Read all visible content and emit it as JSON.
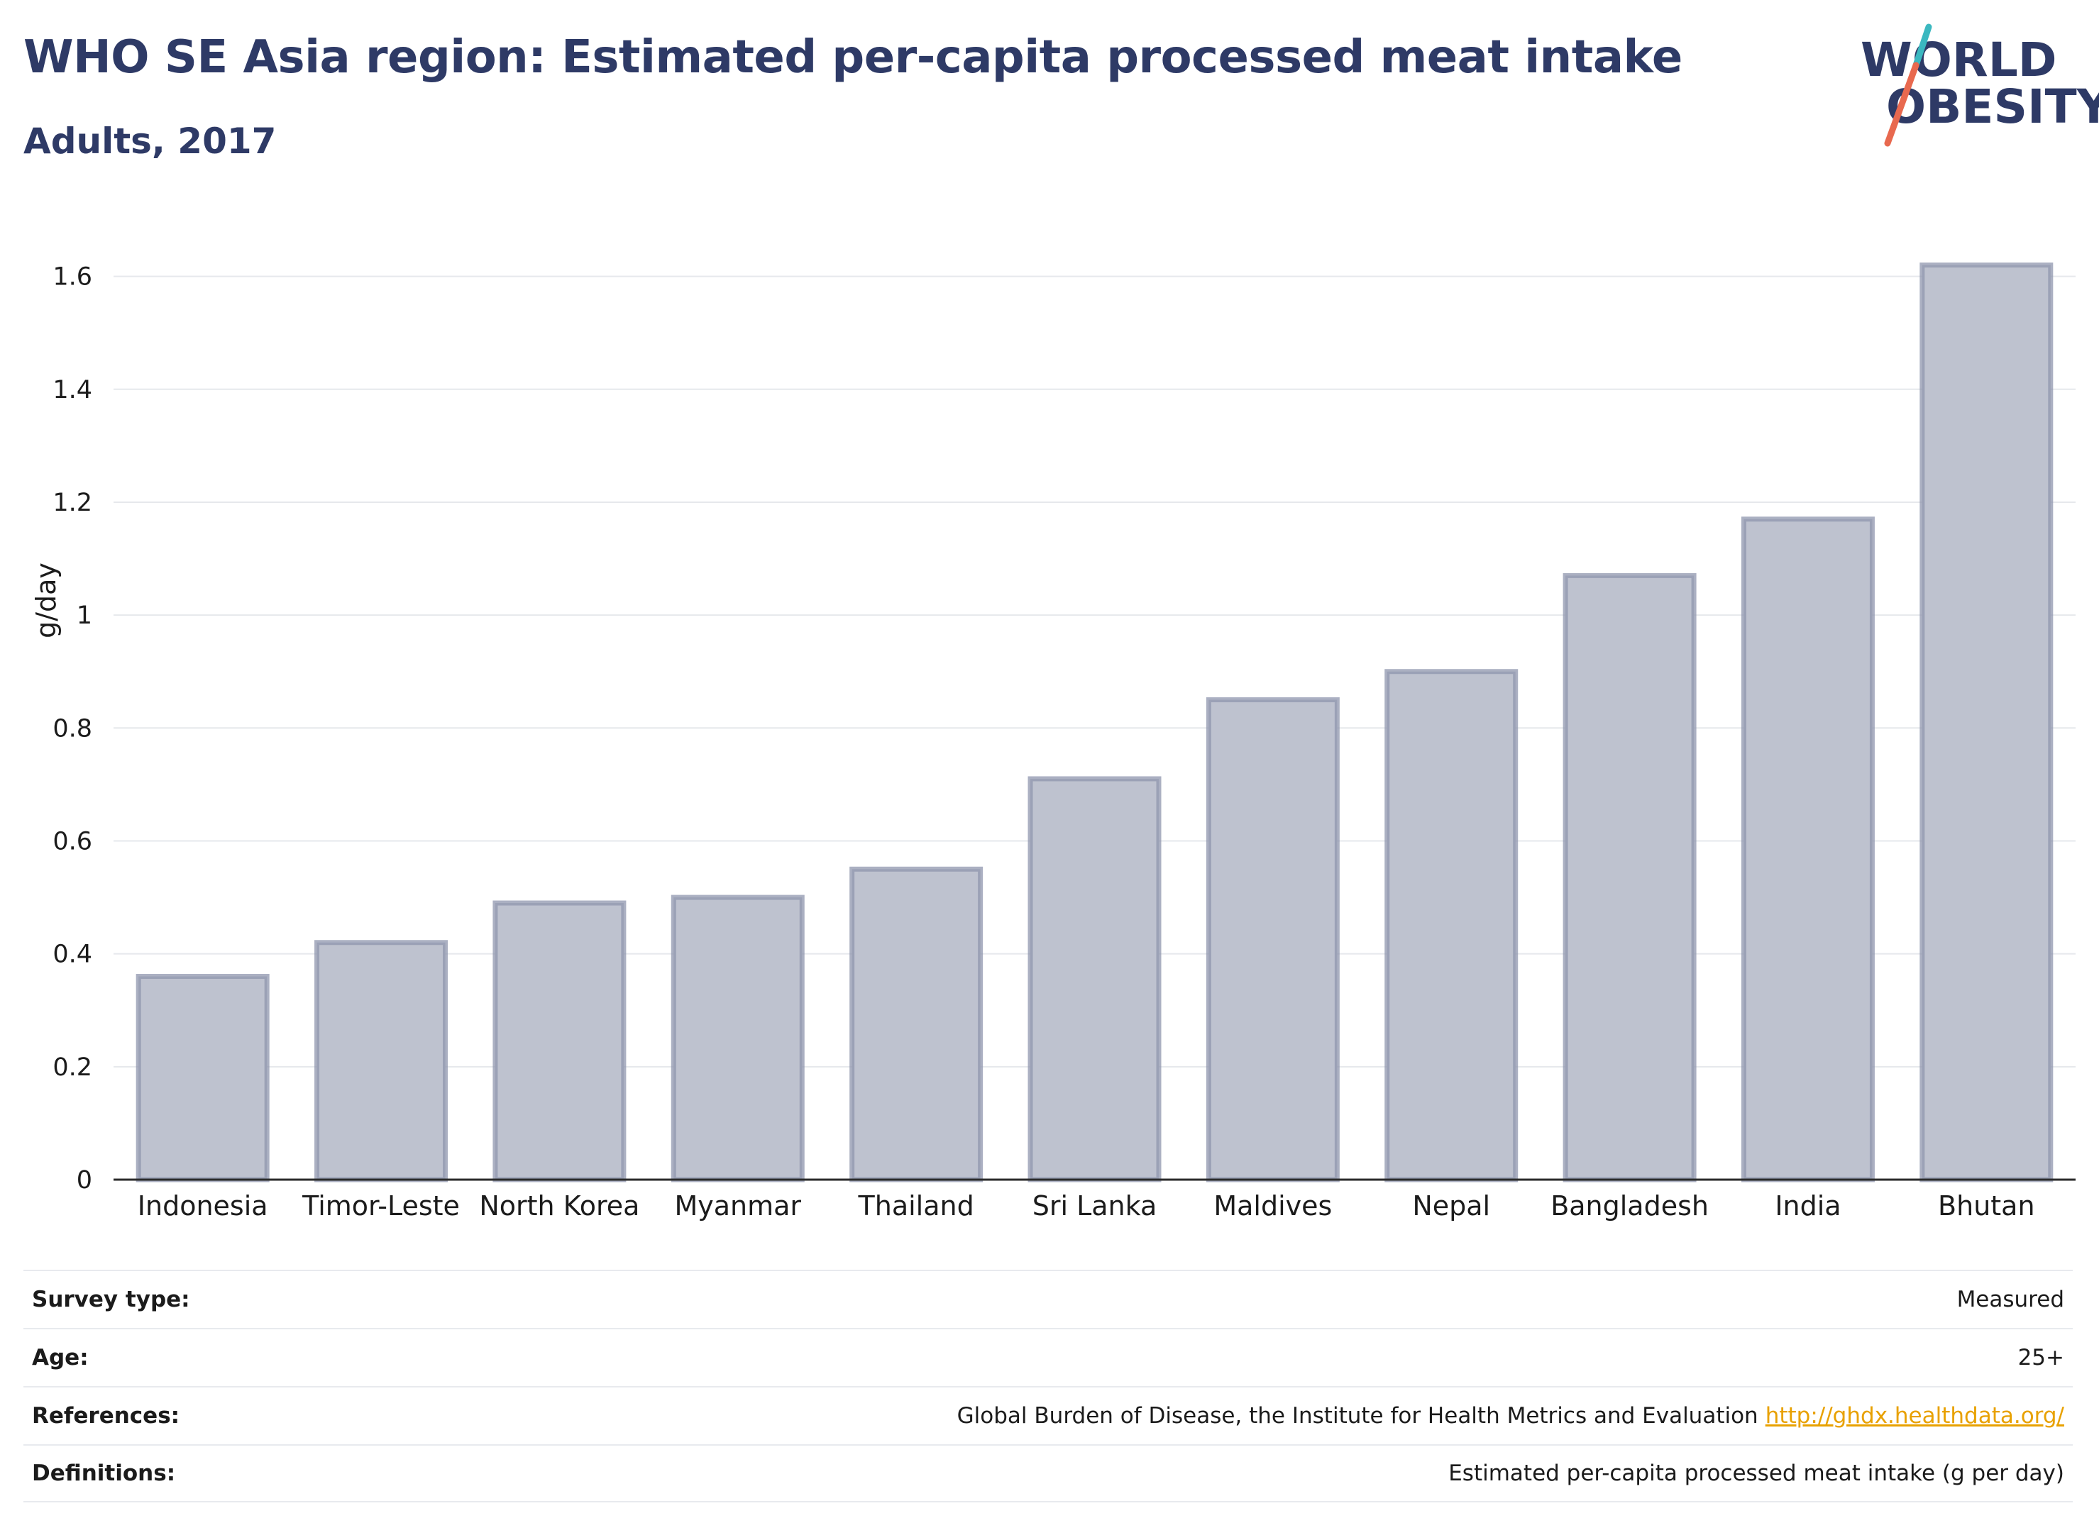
{
  "header": {
    "title": "WHO SE Asia region: Estimated per-capita processed meat intake",
    "subtitle": "Adults, 2017"
  },
  "logo": {
    "line1": "WORLD",
    "line2": "OBESITY",
    "slash_colors": [
      "#3bb8c0",
      "#e8694f"
    ]
  },
  "chart_data": {
    "type": "bar",
    "categories": [
      "Indonesia",
      "Timor-Leste",
      "North Korea",
      "Myanmar",
      "Thailand",
      "Sri Lanka",
      "Maldives",
      "Nepal",
      "Bangladesh",
      "India",
      "Bhutan"
    ],
    "values": [
      0.36,
      0.42,
      0.49,
      0.5,
      0.55,
      0.71,
      0.85,
      0.9,
      1.07,
      1.17,
      1.62
    ],
    "ylabel": "g/day",
    "ylim": [
      0,
      1.7
    ],
    "yticks": [
      0,
      0.2,
      0.4,
      0.6,
      0.8,
      1,
      1.2,
      1.4,
      1.6
    ],
    "ytick_labels": [
      "0",
      "0.2",
      "0.4",
      "0.6",
      "0.8",
      "1",
      "1.2",
      "1.4",
      "1.6"
    ],
    "grid": true,
    "bar_fill": "#bec2cf",
    "bar_stroke": "#8f95ad"
  },
  "meta": {
    "rows": [
      {
        "label": "Survey type:",
        "value": "Measured"
      },
      {
        "label": "Age:",
        "value": "25+"
      },
      {
        "label": "References:",
        "value": "Global Burden of Disease, the Institute for Health Metrics and Evaluation",
        "link": "http://ghdx.healthdata.org/"
      },
      {
        "label": "Definitions:",
        "value": "Estimated per-capita processed meat intake (g per day)"
      }
    ]
  }
}
